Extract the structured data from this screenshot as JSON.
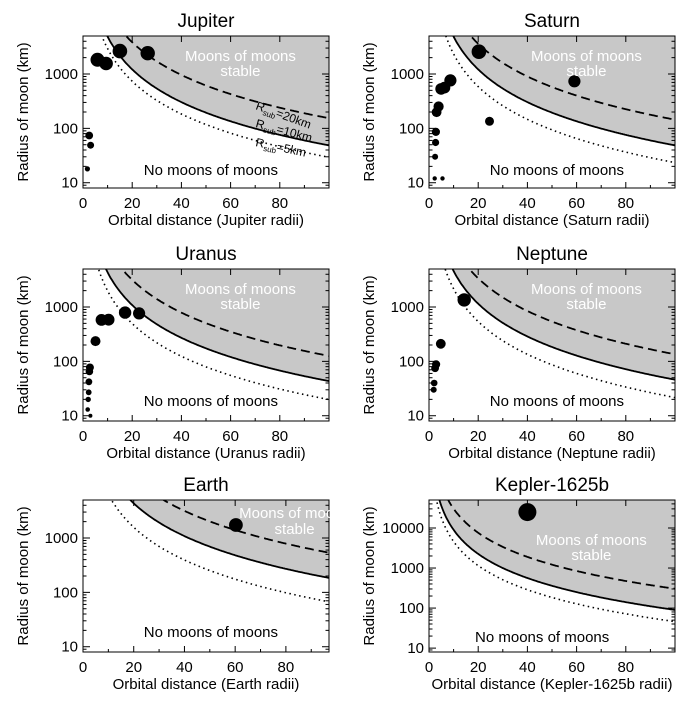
{
  "figure": {
    "ylabel": "Radius of moon (km)",
    "stable_label": [
      "Moons of moons",
      "stable"
    ],
    "unstable_label": "No moons of moons",
    "curve_labels": [
      {
        "subscript": "sub",
        "text": "R​=20km",
        "r": 20
      },
      {
        "subscript": "sub",
        "text": "=10km",
        "r": 10
      },
      {
        "subscript": "sub",
        "text": "=5km",
        "r": 5
      }
    ]
  },
  "chart_data": [
    {
      "type": "scatter",
      "title": "Jupiter",
      "xlabel": "Orbital distance (Jupiter radii)",
      "ylabel": "Radius of moon (km)",
      "xlim": [
        0,
        100
      ],
      "ylim": [
        8,
        5000
      ],
      "yscale": "log",
      "xticks": [
        0,
        20,
        40,
        60,
        80
      ],
      "yticks": [
        10,
        100,
        1000
      ],
      "curve_k": [
        320,
        180,
        140
      ],
      "curve_styles": [
        "dashed",
        "solid",
        "dotted"
      ],
      "curve_labels_shown": true,
      "points": [
        {
          "x": 1.8,
          "y": 18
        },
        {
          "x": 2.5,
          "y": 74
        },
        {
          "x": 3.1,
          "y": 49
        },
        {
          "x": 5.9,
          "y": 1822
        },
        {
          "x": 9.4,
          "y": 1561
        },
        {
          "x": 15.0,
          "y": 2634
        },
        {
          "x": 26.3,
          "y": 2410
        }
      ]
    },
    {
      "type": "scatter",
      "title": "Saturn",
      "xlabel": "Orbital distance (Saturn radii)",
      "ylabel": "Radius of moon (km)",
      "xlim": [
        0,
        100
      ],
      "ylim": [
        8,
        5000
      ],
      "yscale": "log",
      "xticks": [
        0,
        20,
        40,
        60,
        80
      ],
      "yticks": [
        10,
        100,
        1000
      ],
      "curve_k": [
        310,
        180,
        125
      ],
      "curve_styles": [
        "dashed",
        "solid",
        "dotted"
      ],
      "curve_labels_shown": false,
      "points": [
        {
          "x": 2.3,
          "y": 12
        },
        {
          "x": 2.5,
          "y": 30
        },
        {
          "x": 2.7,
          "y": 55
        },
        {
          "x": 2.8,
          "y": 86
        },
        {
          "x": 3.1,
          "y": 198
        },
        {
          "x": 3.9,
          "y": 252
        },
        {
          "x": 4.9,
          "y": 531
        },
        {
          "x": 6.3,
          "y": 561
        },
        {
          "x": 8.7,
          "y": 764
        },
        {
          "x": 20.3,
          "y": 2575
        },
        {
          "x": 24.6,
          "y": 135
        },
        {
          "x": 59.1,
          "y": 734
        },
        {
          "x": 5.5,
          "y": 12
        }
      ]
    },
    {
      "type": "scatter",
      "title": "Uranus",
      "xlabel": "Orbital distance (Uranus radii)",
      "ylabel": "Radius of moon (km)",
      "xlim": [
        0,
        100
      ],
      "ylim": [
        8,
        5000
      ],
      "yscale": "log",
      "xticks": [
        0,
        20,
        40,
        60,
        80
      ],
      "yticks": [
        10,
        100,
        1000
      ],
      "curve_k": [
        290,
        170,
        115
      ],
      "curve_styles": [
        "dashed",
        "solid",
        "dotted"
      ],
      "curve_labels_shown": false,
      "points": [
        {
          "x": 1.9,
          "y": 13
        },
        {
          "x": 2.1,
          "y": 20
        },
        {
          "x": 2.3,
          "y": 27
        },
        {
          "x": 2.4,
          "y": 42
        },
        {
          "x": 2.6,
          "y": 65
        },
        {
          "x": 2.8,
          "y": 77
        },
        {
          "x": 3.0,
          "y": 10
        },
        {
          "x": 5.1,
          "y": 236
        },
        {
          "x": 7.5,
          "y": 579
        },
        {
          "x": 10.4,
          "y": 585
        },
        {
          "x": 17.1,
          "y": 789
        },
        {
          "x": 22.8,
          "y": 761
        }
      ]
    },
    {
      "type": "scatter",
      "title": "Neptune",
      "xlabel": "Orbital distance (Neptune radii)",
      "ylabel": "Radius of moon (km)",
      "xlim": [
        0,
        100
      ],
      "ylim": [
        8,
        5000
      ],
      "yscale": "log",
      "xticks": [
        0,
        20,
        40,
        60,
        80
      ],
      "yticks": [
        10,
        100,
        1000
      ],
      "curve_k": [
        300,
        175,
        120
      ],
      "curve_styles": [
        "dashed",
        "solid",
        "dotted"
      ],
      "curve_labels_shown": false,
      "points": [
        {
          "x": 1.9,
          "y": 30
        },
        {
          "x": 2.1,
          "y": 40
        },
        {
          "x": 2.5,
          "y": 75
        },
        {
          "x": 2.9,
          "y": 88
        },
        {
          "x": 4.8,
          "y": 210
        },
        {
          "x": 14.3,
          "y": 1353
        }
      ]
    },
    {
      "type": "scatter",
      "title": "Earth",
      "xlabel": "Orbital distance (Earth radii)",
      "ylabel": "Radius of moon (km)",
      "xlim": [
        0,
        97
      ],
      "ylim": [
        8,
        5000
      ],
      "yscale": "log",
      "xticks": [
        0,
        20,
        40,
        60,
        80
      ],
      "yticks": [
        10,
        100,
        1000
      ],
      "curve_k": [
        580,
        340,
        205
      ],
      "curve_styles": [
        "dashed",
        "solid",
        "dotted"
      ],
      "curve_labels_shown": false,
      "points": [
        {
          "x": 60.3,
          "y": 1737
        }
      ]
    },
    {
      "type": "scatter",
      "title": "Kepler-1625b",
      "xlabel": "Orbital distance (Kepler-1625b radii)",
      "ylabel": "Radius of moon (km)",
      "xlim": [
        0,
        100
      ],
      "ylim": [
        8,
        50000
      ],
      "yscale": "log",
      "xticks": [
        0,
        20,
        40,
        60,
        80
      ],
      "yticks": [
        10,
        100,
        1000,
        10000
      ],
      "curve_k": [
        450,
        245,
        175
      ],
      "curve_styles": [
        "dashed",
        "solid",
        "dotted"
      ],
      "curve_labels_shown": false,
      "points": [
        {
          "x": 40,
          "y": 25000
        }
      ]
    }
  ]
}
